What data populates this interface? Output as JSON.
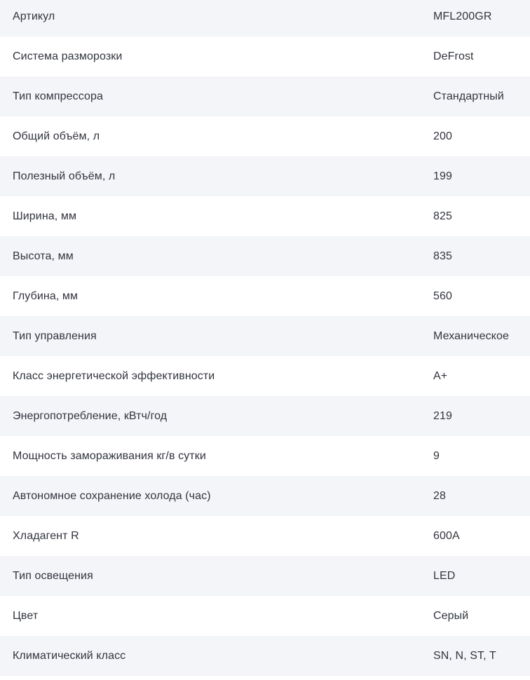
{
  "table": {
    "rows": [
      {
        "label": "Артикул",
        "value": "MFL200GR"
      },
      {
        "label": "Система разморозки",
        "value": "DeFrost"
      },
      {
        "label": "Тип компрессора",
        "value": "Стандартный"
      },
      {
        "label": "Общий объём, л",
        "value": "200"
      },
      {
        "label": "Полезный объём, л",
        "value": "199"
      },
      {
        "label": "Ширина, мм",
        "value": "825"
      },
      {
        "label": "Высота, мм",
        "value": "835"
      },
      {
        "label": "Глубина, мм",
        "value": "560"
      },
      {
        "label": "Тип управления",
        "value": "Механическое"
      },
      {
        "label": "Класс энергетической эффективности",
        "value": "A+"
      },
      {
        "label": "Энергопотребление, кВтч/год",
        "value": "219"
      },
      {
        "label": "Мощность замораживания кг/в сутки",
        "value": "9"
      },
      {
        "label": "Автономное сохранение холода (час)",
        "value": "28"
      },
      {
        "label": "Хладагент R",
        "value": "600A"
      },
      {
        "label": "Тип освещения",
        "value": "LED"
      },
      {
        "label": "Цвет",
        "value": "Серый"
      },
      {
        "label": "Климатический класс",
        "value": "SN, N, ST, T"
      }
    ]
  },
  "colors": {
    "stripe_background": "#f4f5f9",
    "row_background": "#ffffff",
    "text": "#31353c"
  }
}
